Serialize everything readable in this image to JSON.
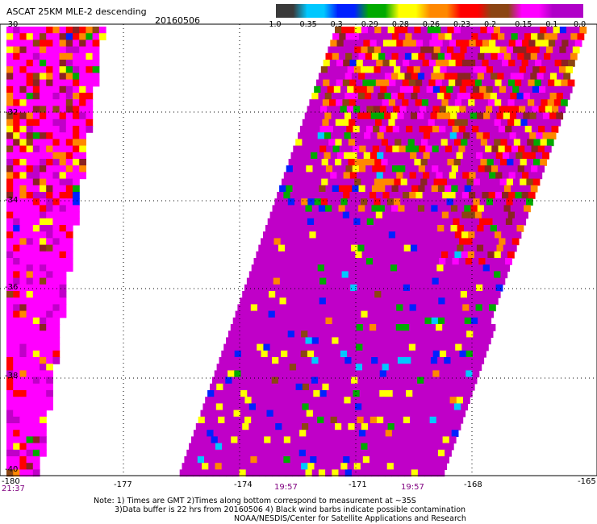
{
  "header": {
    "title": "ASCAT 25KM MLE-2 descending",
    "date": "20160506"
  },
  "colorbar": {
    "colors": [
      "#3a3a3a",
      "#00c8ff",
      "#0020ff",
      "#00aa00",
      "#ffff00",
      "#ff8800",
      "#ff0000",
      "#8b4513",
      "#ff00ff",
      "#b000c8"
    ],
    "tick_labels": [
      "-1.0",
      "-0.35",
      "-0.3",
      "-0.29",
      "-0.28",
      "-0.26",
      "-0.23",
      "-0.2",
      "-0.15",
      "-0.1",
      "0.0"
    ]
  },
  "axes": {
    "x_ticks": [
      "-180",
      "-177",
      "-174",
      "-171",
      "-168",
      "-165"
    ],
    "y_ticks": [
      "-30",
      "-32",
      "-34",
      "-36",
      "-38",
      "-40"
    ]
  },
  "times": [
    "21:37",
    "19:57",
    "19:57"
  ],
  "notes": {
    "line1": "Note: 1) Times are GMT 2)Times along bottom correspond to measurement at ~35S",
    "line2": "3)Data buffer is 22 hrs from 20160506 4) Black wind barbs indicate possible contamination",
    "line3": "NOAA/NESDIS/Center for Satellite Applications and Research"
  }
}
